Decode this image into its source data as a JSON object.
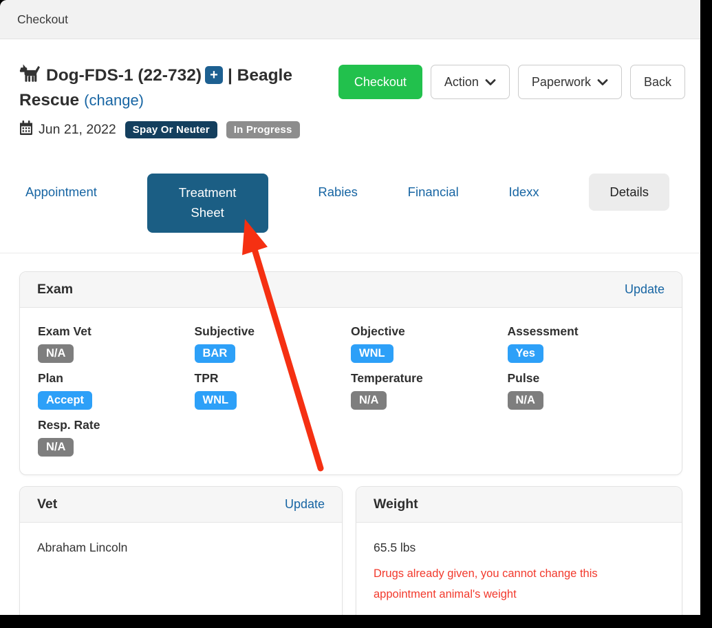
{
  "colors": {
    "accent": "#1765a3",
    "tab_active_bg": "#1b5e84",
    "type_badge_bg": "#143f5e",
    "status_badge_bg": "#8d8d8d",
    "value_blue": "#2da0f8",
    "value_gray": "#7e7e7e",
    "success_green": "#22c14d",
    "warning_red": "#f2392c",
    "arrow_red": "#f53012",
    "plus_badge_bg": "#1d6091"
  },
  "topbar": {
    "title": "Checkout"
  },
  "header": {
    "patient_name": "Dog-FDS-1 (22-732)",
    "plus_badge": "+",
    "group_name": "| Beagle Rescue",
    "change_link": "(change)",
    "date": "Jun 21, 2022",
    "type_badge": "Spay Or Neuter",
    "status_badge": "In Progress"
  },
  "actions": {
    "checkout": "Checkout",
    "action": "Action",
    "paperwork": "Paperwork",
    "back": "Back"
  },
  "tabs": {
    "items": [
      {
        "label": "Appointment",
        "style": "link"
      },
      {
        "label": "Treatment Sheet",
        "style": "active"
      },
      {
        "label": "Rabies",
        "style": "link"
      },
      {
        "label": "Financial",
        "style": "link"
      },
      {
        "label": "Idexx",
        "style": "link"
      },
      {
        "label": "Details",
        "style": "pill"
      }
    ]
  },
  "exam": {
    "title": "Exam",
    "update_link": "Update",
    "fields": [
      {
        "label": "Exam Vet",
        "value": "N/A",
        "variant": "gray"
      },
      {
        "label": "Subjective",
        "value": "BAR",
        "variant": "blue"
      },
      {
        "label": "Objective",
        "value": "WNL",
        "variant": "blue"
      },
      {
        "label": "Assessment",
        "value": "Yes",
        "variant": "blue"
      },
      {
        "label": "Plan",
        "value": "Accept",
        "variant": "blue"
      },
      {
        "label": "TPR",
        "value": "WNL",
        "variant": "blue"
      },
      {
        "label": "Temperature",
        "value": "N/A",
        "variant": "gray"
      },
      {
        "label": "Pulse",
        "value": "N/A",
        "variant": "gray"
      },
      {
        "label": "Resp. Rate",
        "value": "N/A",
        "variant": "gray"
      }
    ]
  },
  "vet_card": {
    "title": "Vet",
    "update_link": "Update",
    "vet_name": "Abraham Lincoln"
  },
  "weight_card": {
    "title": "Weight",
    "weight": "65.5 lbs",
    "warning": "Drugs already given, you cannot change this appointment animal's weight"
  }
}
